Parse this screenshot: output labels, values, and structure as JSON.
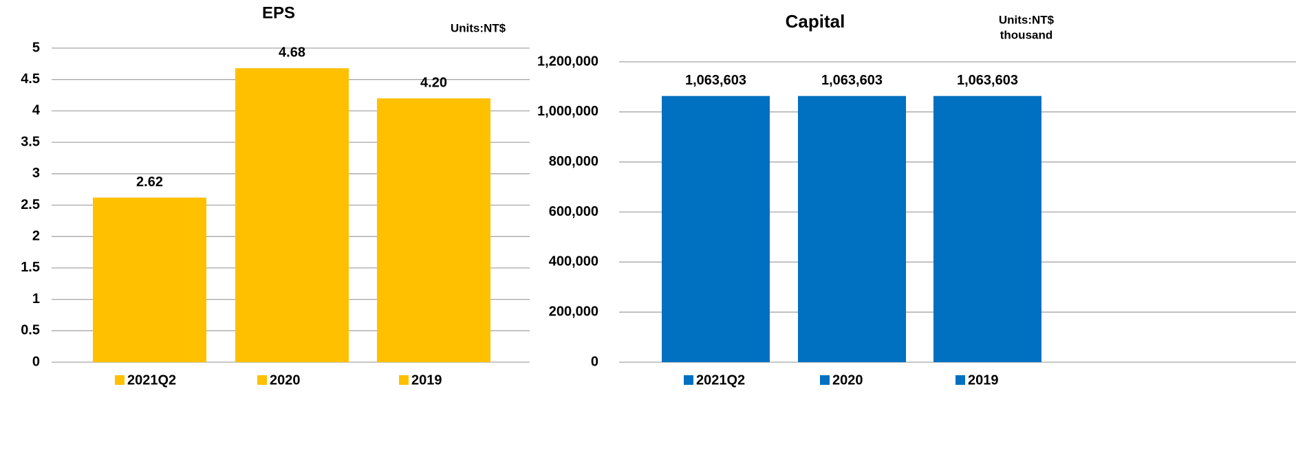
{
  "chart_data": [
    {
      "type": "bar",
      "title": "EPS",
      "units": [
        "Units:NT$"
      ],
      "categories": [
        "2021Q2",
        "2020",
        "2019"
      ],
      "values": [
        2.62,
        4.68,
        4.2
      ],
      "value_labels": [
        "2.62",
        "4.68",
        "4.20"
      ],
      "color": "#FFC000",
      "ylim": [
        0,
        5
      ],
      "yticks": [
        0,
        0.5,
        1,
        1.5,
        2,
        2.5,
        3,
        3.5,
        4,
        4.5,
        5
      ],
      "grid": true
    },
    {
      "type": "bar",
      "title": "Capital",
      "units": [
        "Units:NT$",
        "thousand"
      ],
      "categories": [
        "2021Q2",
        "2020",
        "2019"
      ],
      "values": [
        1063603,
        1063603,
        1063603
      ],
      "value_labels": [
        "1,063,603",
        "1,063,603",
        "1,063,603"
      ],
      "color": "#0070C0",
      "ylim": [
        0,
        1200000
      ],
      "yticks": [
        0,
        {
          "value": 200000,
          "label": "200,000"
        },
        {
          "value": 400000,
          "label": "400,000"
        },
        {
          "value": 600000,
          "label": "600,000"
        },
        {
          "value": 800000,
          "label": "800,000"
        },
        {
          "value": 1000000,
          "label": "1,000,000"
        },
        {
          "value": 1200000,
          "label": "1,200,000"
        }
      ],
      "grid": true
    }
  ]
}
